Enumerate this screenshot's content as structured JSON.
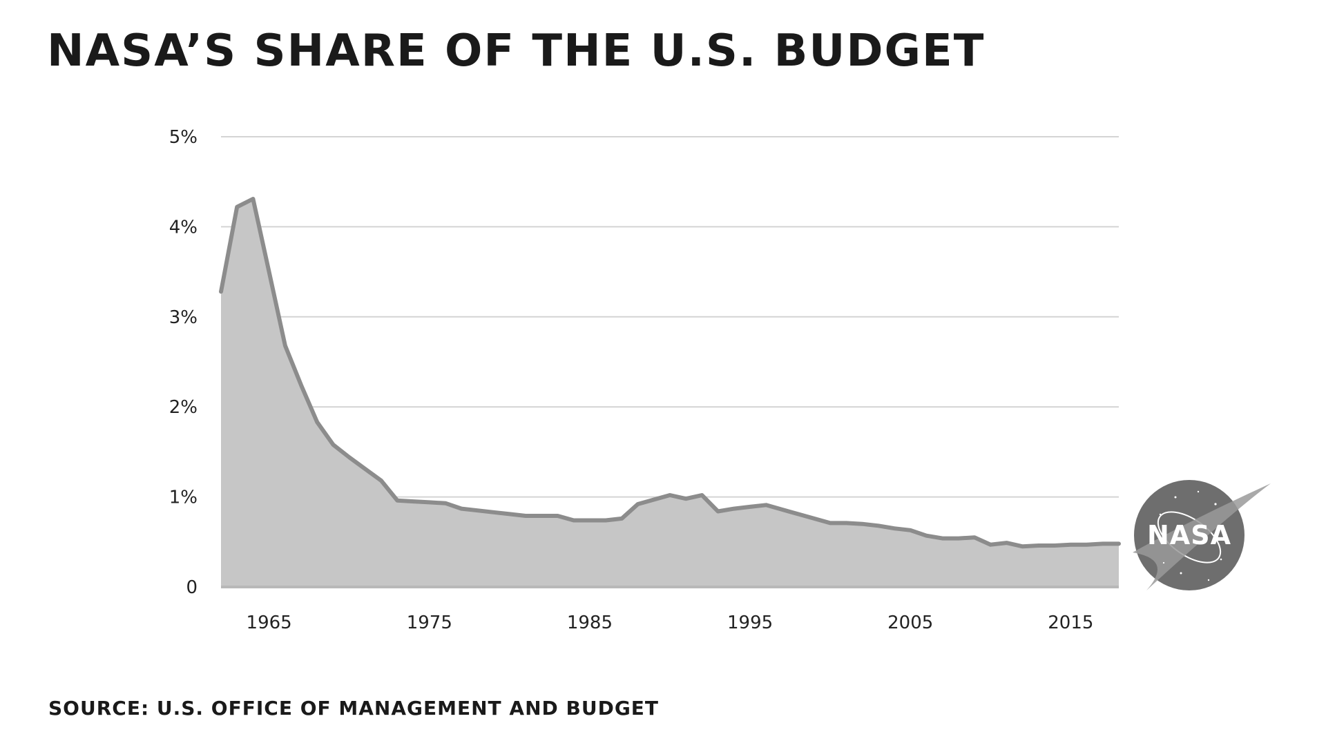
{
  "header": {
    "title": "NASA’s share of the U.S. budget"
  },
  "footer": {
    "source": "Source: U.S. Office of Management and Budget"
  },
  "logo": {
    "text": "NASA",
    "icon": "nasa-meatball-logo"
  },
  "colors": {
    "line": "#8c8c8c",
    "fill": "#c6c6c6",
    "grid": "#d4d4d4",
    "logo": "#6e6e6e"
  },
  "chart_data": {
    "type": "area",
    "title": "NASA’s share of the U.S. budget",
    "xlabel": "",
    "ylabel": "",
    "xlim": [
      1962,
      2018
    ],
    "ylim": [
      0,
      5
    ],
    "grid": true,
    "legend": "none",
    "x_ticks": [
      1965,
      1975,
      1985,
      1995,
      2005,
      2015
    ],
    "x_tick_labels": [
      "1965",
      "1975",
      "1985",
      "1995",
      "2005",
      "2015"
    ],
    "y_ticks": [
      0,
      1,
      2,
      3,
      4,
      5
    ],
    "y_tick_labels": [
      "0",
      "1%",
      "2%",
      "3%",
      "4%",
      "5%"
    ],
    "series": [
      {
        "x": [
          1962,
          1963,
          1964,
          1965,
          1966,
          1967,
          1968,
          1969,
          1970,
          1971,
          1972,
          1973,
          1974,
          1975,
          1976,
          1977,
          1978,
          1979,
          1980,
          1981,
          1982,
          1983,
          1984,
          1985,
          1986,
          1987,
          1988,
          1989,
          1990,
          1991,
          1992,
          1993,
          1994,
          1995,
          1996,
          1997,
          1998,
          1999,
          2000,
          2001,
          2002,
          2003,
          2004,
          2005,
          2006,
          2007,
          2008,
          2009,
          2010,
          2011,
          2012,
          2013,
          2014,
          2015,
          2016,
          2017,
          2018
        ],
        "values": [
          3.28,
          4.22,
          4.31,
          3.5,
          2.68,
          2.24,
          1.83,
          1.58,
          1.44,
          1.31,
          1.18,
          0.96,
          0.95,
          0.94,
          0.93,
          0.87,
          0.85,
          0.83,
          0.81,
          0.79,
          0.79,
          0.79,
          0.74,
          0.74,
          0.74,
          0.76,
          0.92,
          0.97,
          1.02,
          0.98,
          1.02,
          0.84,
          0.87,
          0.89,
          0.91,
          0.86,
          0.81,
          0.76,
          0.71,
          0.71,
          0.7,
          0.68,
          0.65,
          0.63,
          0.57,
          0.54,
          0.54,
          0.55,
          0.47,
          0.49,
          0.45,
          0.46,
          0.46,
          0.47,
          0.47,
          0.48,
          0.48
        ]
      }
    ]
  }
}
